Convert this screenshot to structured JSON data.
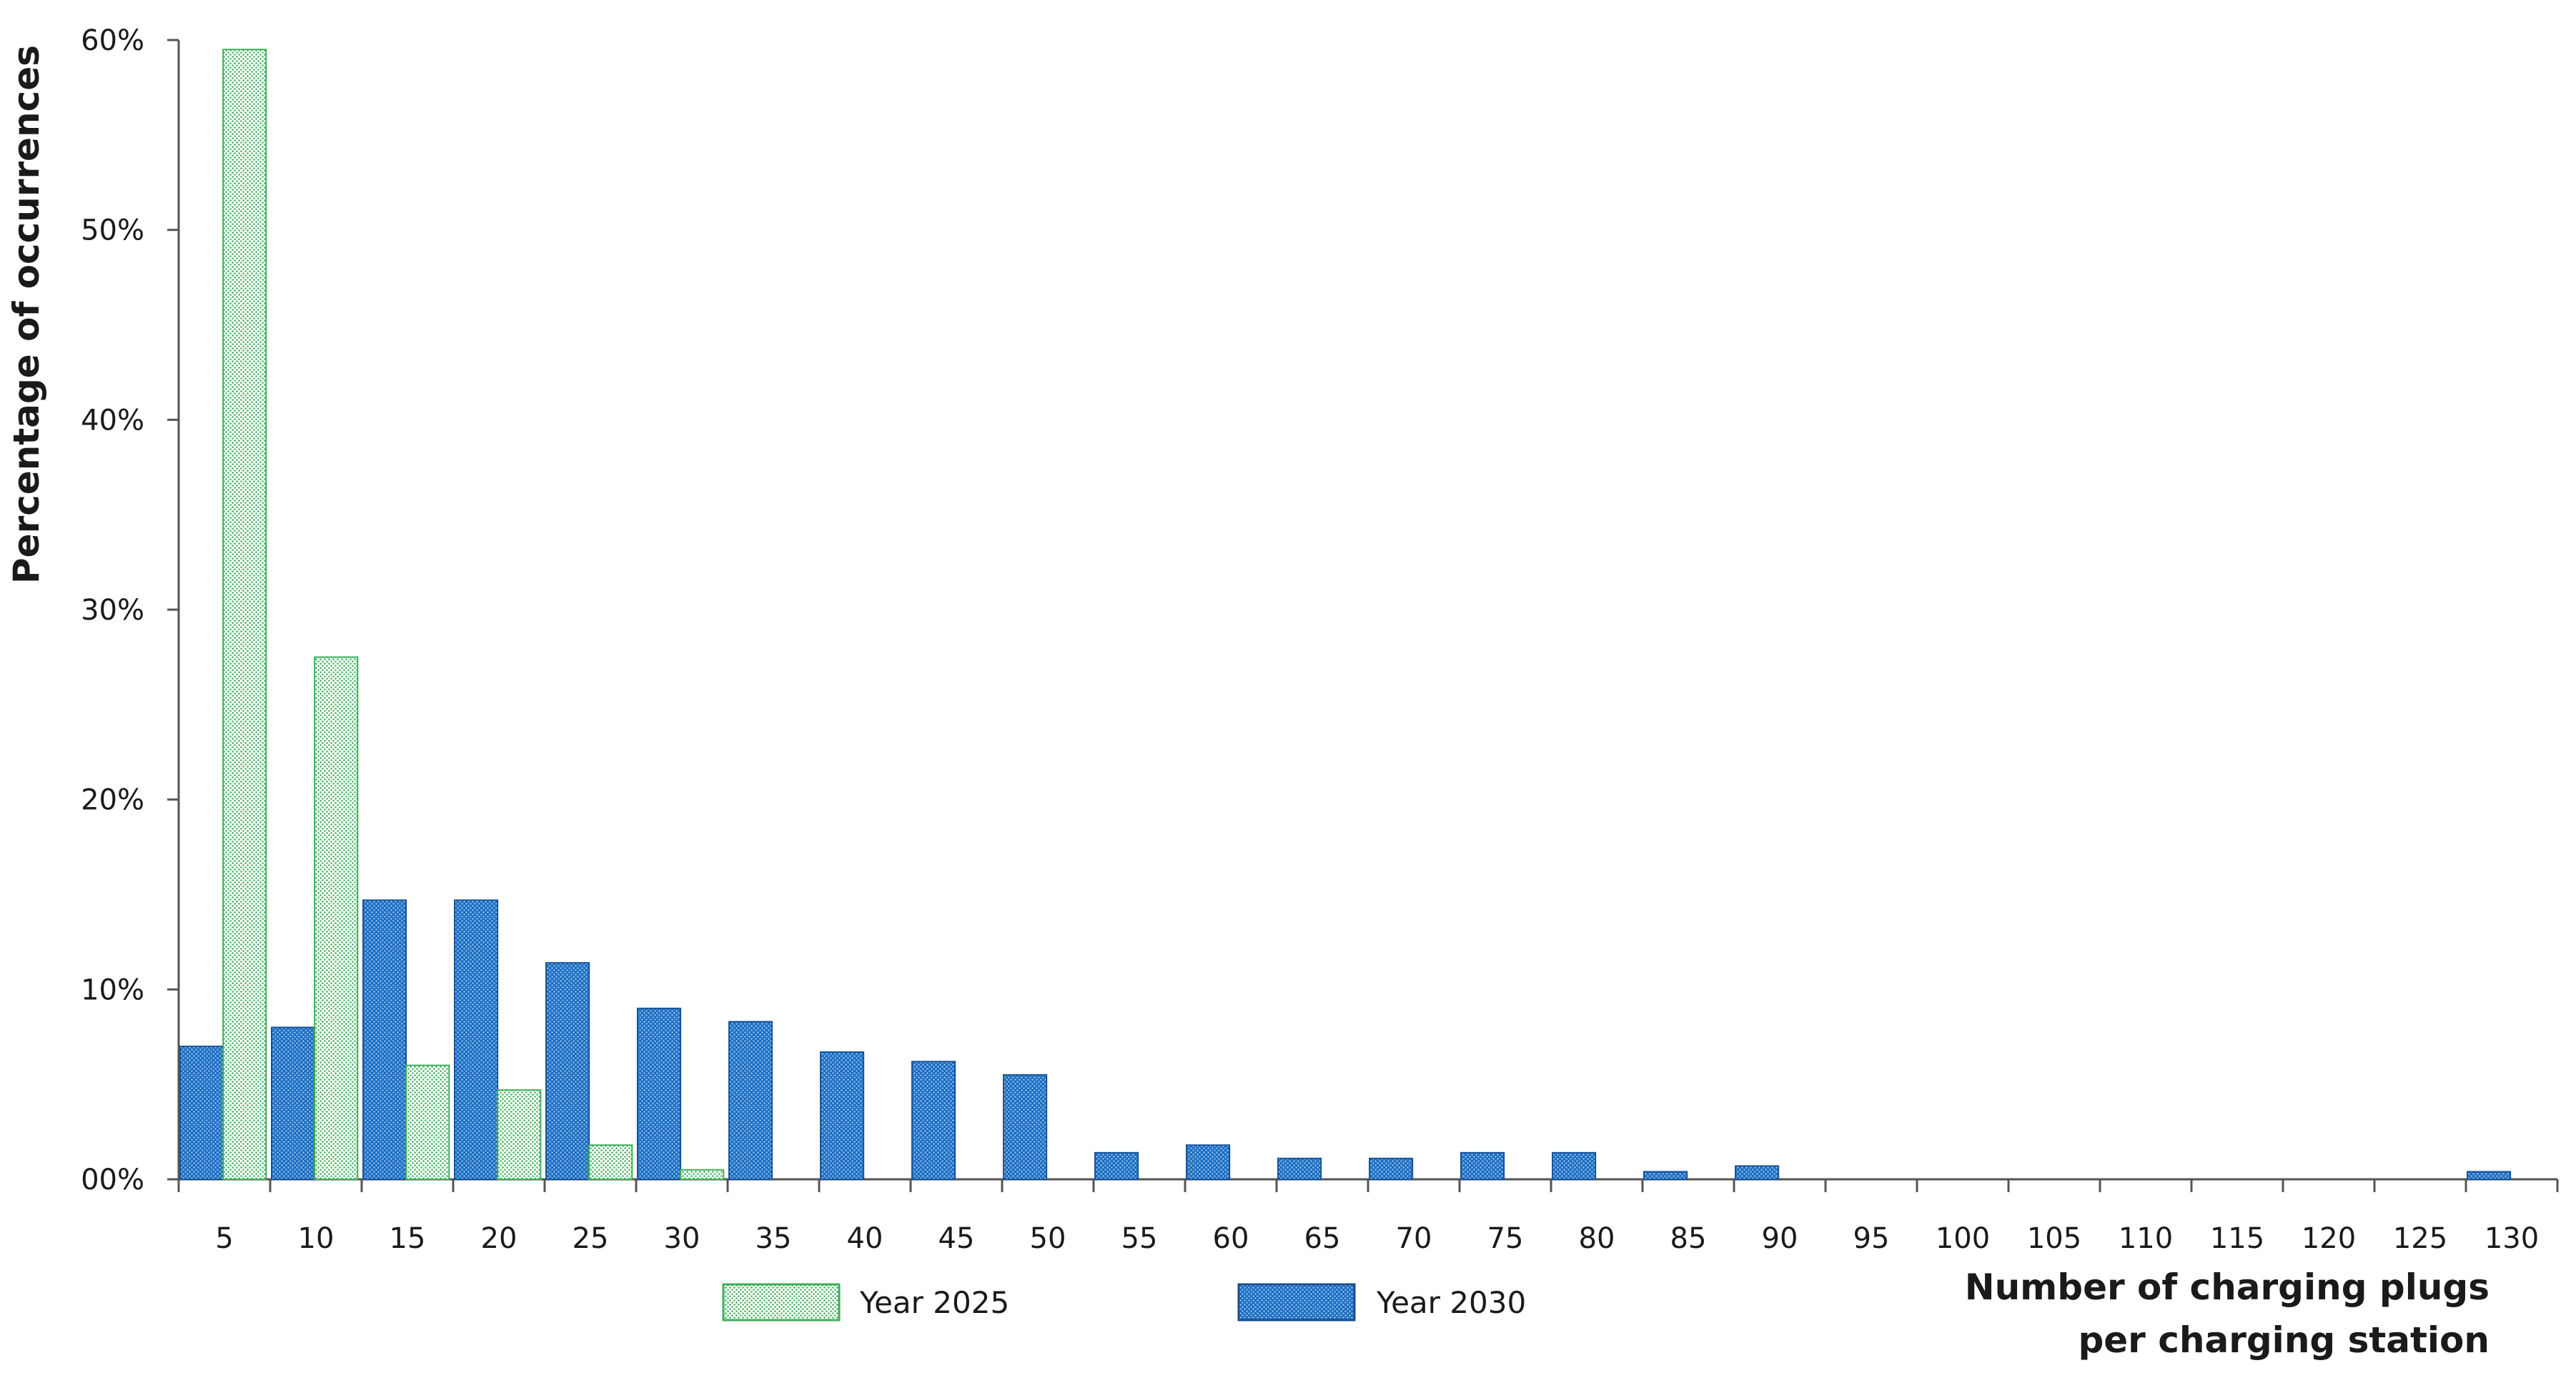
{
  "chart_data": {
    "type": "bar",
    "categories": [
      "5",
      "10",
      "15",
      "20",
      "25",
      "30",
      "35",
      "40",
      "45",
      "50",
      "55",
      "60",
      "65",
      "70",
      "75",
      "80",
      "85",
      "90",
      "95",
      "100",
      "105",
      "110",
      "115",
      "120",
      "125",
      "130"
    ],
    "series": [
      {
        "name": "Year 2030",
        "color": "#1f6fc2",
        "pattern": "dotted",
        "values": [
          7.0,
          8.0,
          14.7,
          14.7,
          11.4,
          9.0,
          8.3,
          6.7,
          6.2,
          5.5,
          1.4,
          1.8,
          1.1,
          1.1,
          1.4,
          1.4,
          0.4,
          0.7,
          0,
          0,
          0,
          0,
          0,
          0,
          0,
          0.4
        ]
      },
      {
        "name": "Year 2025",
        "color": "#3fae5a",
        "pattern": "dotted",
        "values": [
          59.5,
          27.5,
          6.0,
          4.7,
          1.8,
          0.5,
          0,
          0,
          0,
          0,
          0,
          0,
          0,
          0,
          0,
          0,
          0,
          0,
          0,
          0,
          0,
          0,
          0,
          0,
          0,
          0
        ]
      }
    ],
    "ylim": [
      0,
      60
    ],
    "yticks": [
      "00%",
      "10%",
      "20%",
      "30%",
      "40%",
      "50%",
      "60%"
    ],
    "ylabel": "Percentage of occurrences",
    "xlabel_line1": "Number of charging plugs",
    "xlabel_line2": "per charging station",
    "legend": [
      "Year 2025",
      "Year 2030"
    ],
    "legend_position": "bottom",
    "grid": false
  }
}
